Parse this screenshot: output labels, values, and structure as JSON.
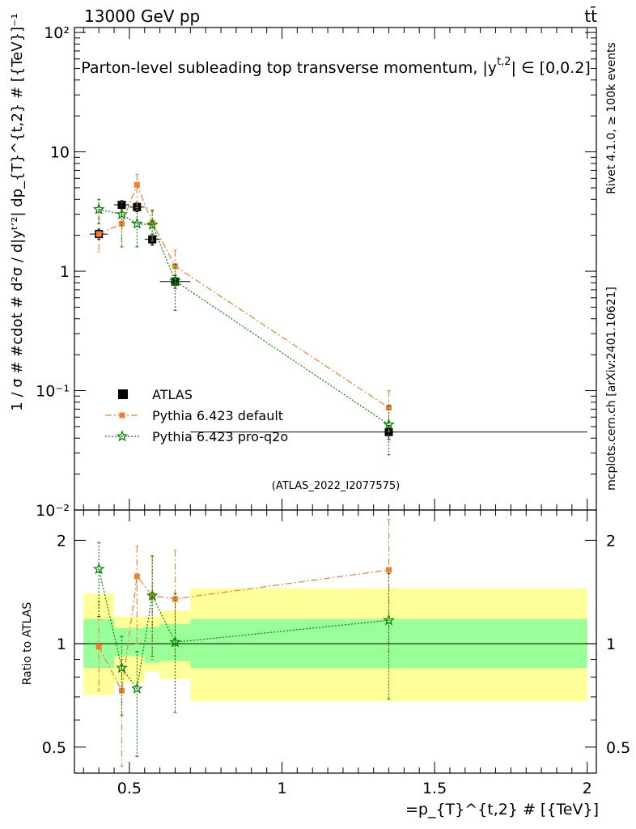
{
  "header": {
    "energy_label": "13000 GeV pp",
    "process_label": "tt̄",
    "title": "Parton-level subleading top transverse momentum, |y",
    "title_sup": "t,2",
    "title_range": "| ∈ [0,0.2]",
    "rivet_label": "Rivet 4.1.0, ≥ 100k events",
    "mcplots_label": "mcplots.cern.ch [arXiv:2401.10621]",
    "analysis_id": "(ATLAS_2022_I2077575)"
  },
  "colors": {
    "atlas": "#000000",
    "default": "#f08030",
    "proq2o": "#008000",
    "band_inner": "#99ff99",
    "band_outer": "#ffff99"
  },
  "chart_data": [
    {
      "type": "scatter",
      "panel": "main",
      "ylabel": "1 / σ # #cdot # d²σ / d|yᵗ′²| dp_{T}^{t,2} # [{TeV}]⁻¹",
      "yscale": "log",
      "ylim": [
        0.01,
        110
      ],
      "xlim": [
        0.32,
        2.03
      ],
      "ytick_labels": [
        "10⁻²",
        "10⁻¹",
        "1",
        "10",
        "10²"
      ],
      "legend": {
        "position": "bottom-left",
        "entries": [
          "ATLAS",
          "Pythia 6.423 default",
          "Pythia 6.423 pro-q2o"
        ]
      },
      "series": [
        {
          "name": "ATLAS",
          "key": "atlas",
          "marker": "square",
          "line": "none",
          "x": [
            0.4,
            0.475,
            0.525,
            0.575,
            0.65,
            1.35
          ],
          "xerr": [
            0.03,
            0.025,
            0.025,
            0.025,
            0.05,
            0.65
          ],
          "y": [
            2.05,
            3.6,
            3.45,
            1.85,
            0.82,
            0.045
          ],
          "ylo": [
            1.85,
            3.3,
            3.15,
            1.65,
            0.72,
            0.039
          ],
          "yhi": [
            2.25,
            3.9,
            3.75,
            2.05,
            0.92,
            0.051
          ]
        },
        {
          "name": "Pythia 6.423 default",
          "key": "default",
          "marker": "square-small",
          "line": "dashdot",
          "x": [
            0.4,
            0.475,
            0.525,
            0.575,
            0.65,
            1.35
          ],
          "y": [
            2.05,
            2.5,
            5.3,
            2.55,
            1.1,
            0.072
          ],
          "ylo": [
            1.45,
            1.6,
            3.4,
            1.8,
            0.75,
            0.046
          ],
          "yhi": [
            2.8,
            3.3,
            6.5,
            3.3,
            1.5,
            0.1
          ]
        },
        {
          "name": "Pythia 6.423 pro-q2o",
          "key": "proq2o",
          "marker": "star",
          "line": "dotted",
          "x": [
            0.4,
            0.475,
            0.525,
            0.575,
            0.65,
            1.35
          ],
          "y": [
            3.3,
            3.0,
            2.5,
            2.45,
            0.83,
            0.052
          ],
          "ylo": [
            2.5,
            1.6,
            1.6,
            1.7,
            0.47,
            0.029
          ],
          "yhi": [
            4.0,
            3.8,
            3.3,
            3.2,
            1.15,
            0.075
          ]
        }
      ]
    },
    {
      "type": "line",
      "panel": "ratio",
      "ylabel": "Ratio to ATLAS",
      "xlabel": "=p_{T}^{t,2} # [{TeV}]",
      "ylim": [
        0.42,
        2.45
      ],
      "xlim": [
        0.32,
        2.03
      ],
      "xtick_labels": [
        "0.5",
        "1",
        "1.5",
        "2"
      ],
      "xticks": [
        0.5,
        1.0,
        1.5,
        2.0
      ],
      "ytick_labels": [
        "0.5",
        "1",
        "2"
      ],
      "yticks": [
        0.5,
        1.0,
        2.0
      ],
      "bands": [
        {
          "x": [
            0.35,
            0.45
          ],
          "inner": [
            0.85,
            1.18
          ],
          "outer": [
            0.71,
            1.4
          ]
        },
        {
          "x": [
            0.45,
            0.55
          ],
          "inner": [
            0.92,
            1.11
          ],
          "outer": [
            0.77,
            1.2
          ]
        },
        {
          "x": [
            0.55,
            0.6
          ],
          "inner": [
            0.88,
            1.12
          ],
          "outer": [
            0.83,
            1.2
          ]
        },
        {
          "x": [
            0.6,
            0.7
          ],
          "inner": [
            0.89,
            1.14
          ],
          "outer": [
            0.79,
            1.25
          ]
        },
        {
          "x": [
            0.7,
            2.0
          ],
          "inner": [
            0.85,
            1.18
          ],
          "outer": [
            0.68,
            1.45
          ]
        }
      ],
      "series": [
        {
          "name": "Pythia 6.423 default",
          "key": "default",
          "marker": "square-small",
          "line": "dashdot",
          "x": [
            0.4,
            0.475,
            0.525,
            0.575,
            0.65,
            1.35
          ],
          "y": [
            0.98,
            0.73,
            1.57,
            1.38,
            1.35,
            1.64
          ],
          "ylo": [
            0.73,
            0.44,
            1.0,
            0.9,
            0.92,
            0.95
          ],
          "yhi": [
            1.33,
            0.9,
            1.92,
            1.8,
            1.87,
            2.3
          ]
        },
        {
          "name": "Pythia 6.423 pro-q2o",
          "key": "proq2o",
          "marker": "star",
          "line": "dotted",
          "x": [
            0.4,
            0.475,
            0.525,
            0.575,
            0.65,
            1.35
          ],
          "y": [
            1.65,
            0.85,
            0.74,
            1.38,
            1.01,
            1.17
          ],
          "ylo": [
            1.2,
            0.62,
            0.47,
            0.92,
            0.63,
            0.69
          ],
          "yhi": [
            1.97,
            1.05,
            0.95,
            1.8,
            1.4,
            1.6
          ]
        }
      ]
    }
  ]
}
